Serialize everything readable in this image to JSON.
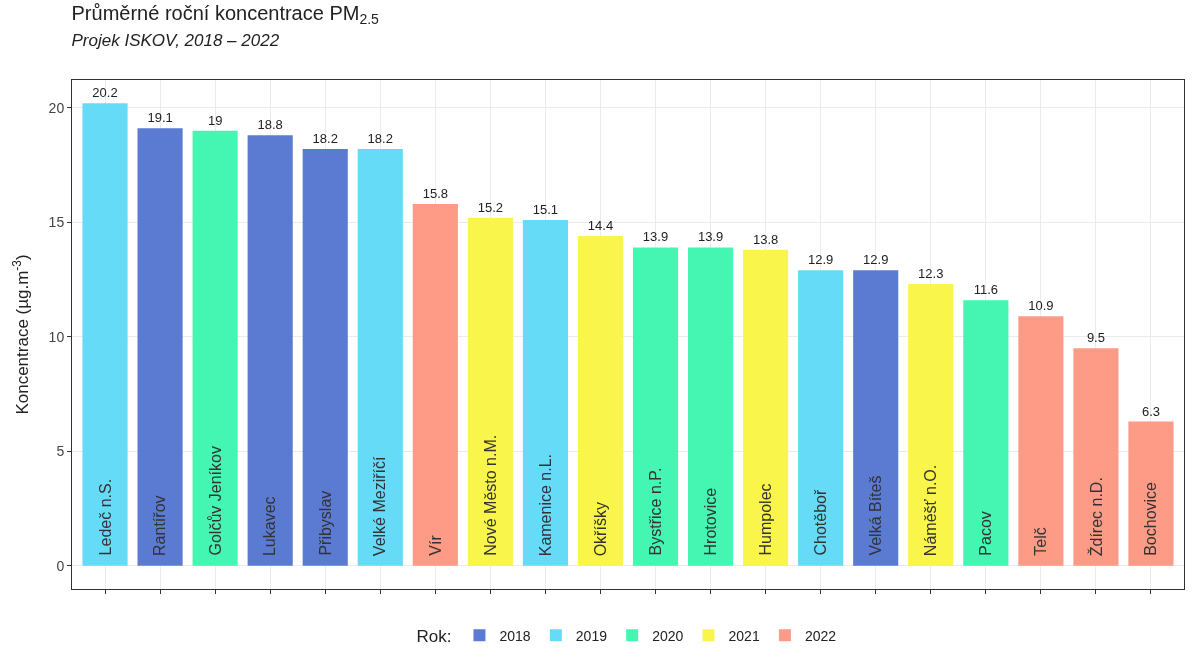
{
  "chart_data": {
    "type": "bar",
    "title": "Průměrné roční koncentrace PM$_{2.5}$",
    "subtitle": "Projek ISKOV, 2018 – 2022",
    "ylabel": "Koncentrace (µg.m$^{-3}$)",
    "legend_title": "Rok:",
    "categories": [
      "Ledeč n.S.",
      "Rantířov",
      "Golčův Jeníkov",
      "Lukavec",
      "Přibyslav",
      "Velké Meziříčí",
      "Vír",
      "Nové Město n.M.",
      "Kamenice n.L.",
      "Okříšky",
      "Bystřice n.P.",
      "Hrotovice",
      "Humpolec",
      "Chotěboř",
      "Velká Bíteš",
      "Náměšť n.O.",
      "Pacov",
      "Telč",
      "Ždírec n.D.",
      "Bochovice"
    ],
    "series": [
      {
        "name": "2018",
        "color": "#5b7bd3",
        "values": [
          null,
          19.1,
          null,
          18.8,
          18.2,
          null,
          null,
          null,
          null,
          null,
          null,
          null,
          null,
          null,
          12.9,
          null,
          null,
          null,
          null,
          null
        ]
      },
      {
        "name": "2019",
        "color": "#66dbf7",
        "values": [
          20.2,
          null,
          null,
          null,
          null,
          18.2,
          null,
          null,
          15.1,
          null,
          null,
          null,
          null,
          12.9,
          null,
          null,
          null,
          null,
          null,
          null
        ]
      },
      {
        "name": "2020",
        "color": "#45f5b2",
        "values": [
          null,
          null,
          19,
          null,
          null,
          null,
          null,
          null,
          null,
          null,
          13.9,
          13.9,
          null,
          null,
          null,
          null,
          11.6,
          null,
          null,
          null
        ]
      },
      {
        "name": "2021",
        "color": "#f9f54b",
        "values": [
          null,
          null,
          null,
          null,
          null,
          null,
          null,
          15.2,
          null,
          14.4,
          null,
          null,
          13.8,
          null,
          null,
          12.3,
          null,
          null,
          null,
          null
        ]
      },
      {
        "name": "2022",
        "color": "#fd9b86",
        "values": [
          null,
          null,
          null,
          null,
          null,
          null,
          15.8,
          null,
          null,
          null,
          null,
          null,
          null,
          null,
          null,
          null,
          null,
          10.9,
          9.5,
          6.3
        ]
      }
    ],
    "ylim": [
      -1.01,
      21.21
    ],
    "yticks": [
      0,
      5,
      10,
      15,
      20
    ],
    "grid": true,
    "legend": "bottom",
    "data_labels": true
  }
}
